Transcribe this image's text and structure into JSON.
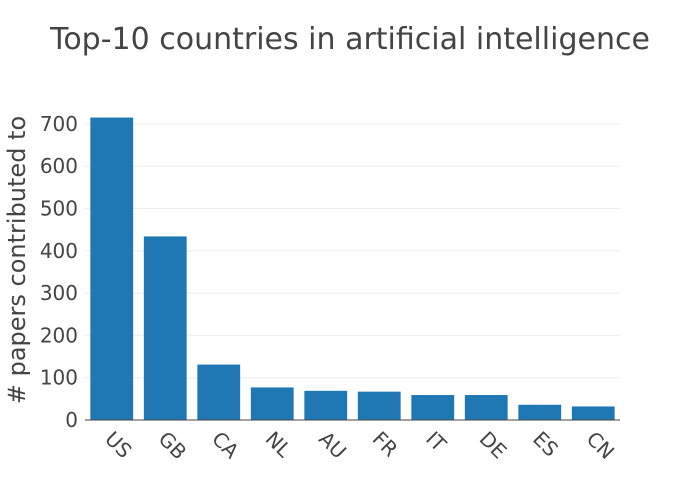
{
  "chart_data": {
    "type": "bar",
    "title": "Top-10 countries in artificial intelligence",
    "xlabel": "",
    "ylabel": "# papers contributed to",
    "categories": [
      "US",
      "GB",
      "CA",
      "NL",
      "AU",
      "FR",
      "IT",
      "DE",
      "ES",
      "CN"
    ],
    "values": [
      715,
      434,
      131,
      77,
      69,
      67,
      59,
      59,
      36,
      32
    ],
    "ylim": [
      0,
      700
    ],
    "y_ticks": [
      0,
      100,
      200,
      300,
      400,
      500,
      600,
      700
    ],
    "y_tick_labels": [
      "0",
      "100",
      "200",
      "300",
      "400",
      "500",
      "600",
      "700"
    ],
    "grid": true,
    "legend": false,
    "bar_color": "#1f77b4"
  }
}
